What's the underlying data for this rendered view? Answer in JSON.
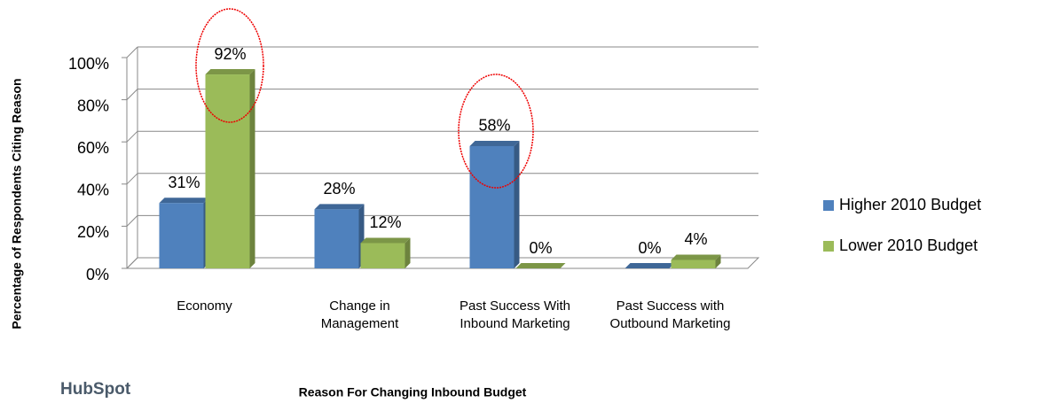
{
  "chart_data": {
    "type": "bar3d",
    "y_label": "Percentage of Respondents Citing Reason",
    "x_label": "Reason For Changing Inbound Budget",
    "logo": "HubSpot",
    "categories": [
      "Economy",
      "Change in Management",
      "Past Success With Inbound Marketing",
      "Past Success with Outbound Marketing"
    ],
    "series": [
      {
        "name": "Higher 2010 Budget",
        "color": "#4f81bd",
        "values": [
          31,
          28,
          58,
          0
        ],
        "value_labels": [
          "31%",
          "28%",
          "58%",
          "0%"
        ]
      },
      {
        "name": "Lower 2010 Budget",
        "color": "#9bbb59",
        "values": [
          92,
          12,
          0,
          4
        ],
        "value_labels": [
          "92%",
          "12%",
          "0%",
          "4%"
        ]
      }
    ],
    "ylim": [
      0,
      100
    ],
    "yticks": [
      {
        "value": 0,
        "label": "0%"
      },
      {
        "value": 20,
        "label": "20%"
      },
      {
        "value": 40,
        "label": "40%"
      },
      {
        "value": 60,
        "label": "60%"
      },
      {
        "value": 80,
        "label": "80%"
      },
      {
        "value": 100,
        "label": "100%"
      }
    ],
    "grid": true,
    "legend": "right"
  }
}
